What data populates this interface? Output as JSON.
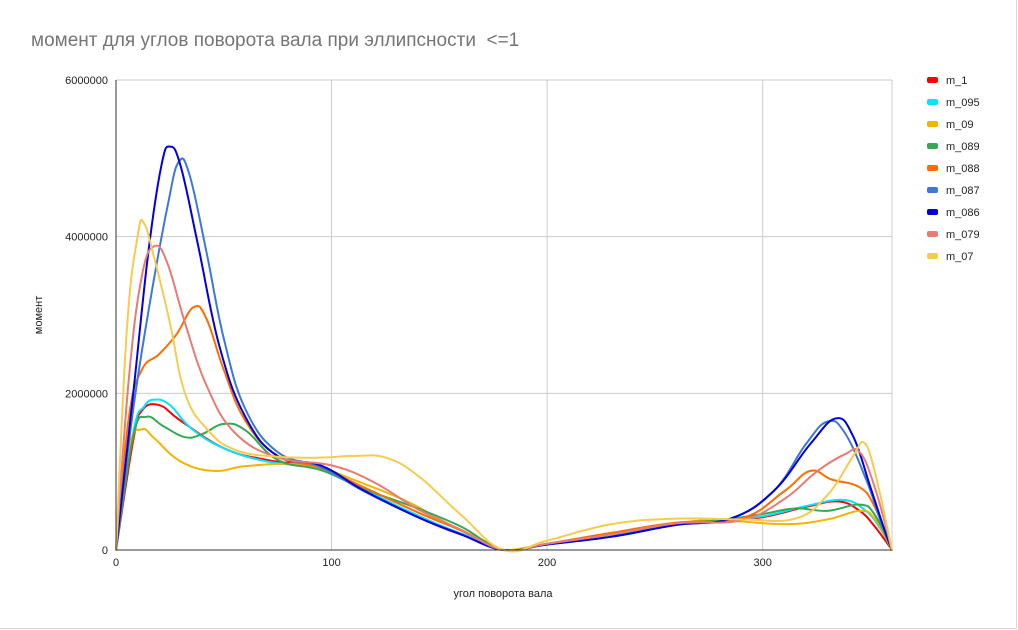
{
  "chart_data": {
    "type": "line",
    "title": "момент для углов поворота вала при эллипсности  <=1",
    "xlabel": "угол поворота вала",
    "ylabel": "момент",
    "xlim": [
      0,
      360
    ],
    "ylim": [
      0,
      6000000
    ],
    "x_ticks": [
      "0",
      "100",
      "200",
      "300"
    ],
    "y_ticks": [
      "0",
      "2000000",
      "4000000",
      "6000000"
    ],
    "grid": true,
    "legend_position": "right",
    "series": [
      {
        "name": "m_1",
        "color": "#ff0000",
        "points": [
          [
            0,
            0
          ],
          [
            8,
            1400000
          ],
          [
            12,
            1780000
          ],
          [
            20,
            1850000
          ],
          [
            30,
            1650000
          ],
          [
            50,
            1300000
          ],
          [
            70,
            1150000
          ],
          [
            95,
            1050000
          ],
          [
            110,
            850000
          ],
          [
            130,
            550000
          ],
          [
            150,
            300000
          ],
          [
            165,
            150000
          ],
          [
            180,
            0
          ],
          [
            200,
            70000
          ],
          [
            230,
            180000
          ],
          [
            260,
            330000
          ],
          [
            280,
            370000
          ],
          [
            300,
            420000
          ],
          [
            320,
            550000
          ],
          [
            335,
            620000
          ],
          [
            345,
            500000
          ],
          [
            352,
            300000
          ],
          [
            360,
            0
          ]
        ]
      },
      {
        "name": "m_095",
        "color": "#00e5ff",
        "points": [
          [
            0,
            0
          ],
          [
            8,
            1500000
          ],
          [
            13,
            1830000
          ],
          [
            18,
            1920000
          ],
          [
            25,
            1850000
          ],
          [
            35,
            1550000
          ],
          [
            50,
            1300000
          ],
          [
            70,
            1130000
          ],
          [
            95,
            1040000
          ],
          [
            110,
            850000
          ],
          [
            130,
            570000
          ],
          [
            150,
            320000
          ],
          [
            165,
            160000
          ],
          [
            180,
            0
          ],
          [
            200,
            70000
          ],
          [
            230,
            180000
          ],
          [
            260,
            330000
          ],
          [
            280,
            370000
          ],
          [
            300,
            430000
          ],
          [
            320,
            560000
          ],
          [
            337,
            640000
          ],
          [
            347,
            520000
          ],
          [
            354,
            300000
          ],
          [
            360,
            0
          ]
        ]
      },
      {
        "name": "m_09",
        "color": "#f4b400",
        "points": [
          [
            0,
            0
          ],
          [
            6,
            1300000
          ],
          [
            12,
            1540000
          ],
          [
            18,
            1420000
          ],
          [
            30,
            1130000
          ],
          [
            45,
            1010000
          ],
          [
            60,
            1070000
          ],
          [
            80,
            1100000
          ],
          [
            95,
            1050000
          ],
          [
            110,
            900000
          ],
          [
            135,
            620000
          ],
          [
            155,
            320000
          ],
          [
            170,
            130000
          ],
          [
            180,
            0
          ],
          [
            200,
            80000
          ],
          [
            230,
            200000
          ],
          [
            260,
            340000
          ],
          [
            280,
            380000
          ],
          [
            310,
            330000
          ],
          [
            330,
            390000
          ],
          [
            345,
            500000
          ],
          [
            352,
            400000
          ],
          [
            360,
            0
          ]
        ]
      },
      {
        "name": "m_089",
        "color": "#34a853",
        "points": [
          [
            0,
            0
          ],
          [
            8,
            1450000
          ],
          [
            14,
            1700000
          ],
          [
            22,
            1580000
          ],
          [
            32,
            1440000
          ],
          [
            40,
            1480000
          ],
          [
            50,
            1610000
          ],
          [
            60,
            1530000
          ],
          [
            75,
            1150000
          ],
          [
            95,
            1020000
          ],
          [
            115,
            780000
          ],
          [
            140,
            530000
          ],
          [
            160,
            300000
          ],
          [
            180,
            0
          ],
          [
            200,
            80000
          ],
          [
            230,
            200000
          ],
          [
            260,
            340000
          ],
          [
            280,
            380000
          ],
          [
            300,
            460000
          ],
          [
            315,
            530000
          ],
          [
            330,
            500000
          ],
          [
            345,
            580000
          ],
          [
            352,
            450000
          ],
          [
            360,
            0
          ]
        ]
      },
      {
        "name": "m_088",
        "color": "#ff6d00",
        "points": [
          [
            0,
            0
          ],
          [
            6,
            1700000
          ],
          [
            12,
            2300000
          ],
          [
            20,
            2500000
          ],
          [
            28,
            2750000
          ],
          [
            36,
            3100000
          ],
          [
            42,
            2950000
          ],
          [
            50,
            2300000
          ],
          [
            60,
            1650000
          ],
          [
            75,
            1200000
          ],
          [
            95,
            1050000
          ],
          [
            115,
            800000
          ],
          [
            140,
            480000
          ],
          [
            160,
            250000
          ],
          [
            180,
            0
          ],
          [
            200,
            80000
          ],
          [
            230,
            220000
          ],
          [
            260,
            350000
          ],
          [
            290,
            400000
          ],
          [
            310,
            750000
          ],
          [
            322,
            1010000
          ],
          [
            332,
            900000
          ],
          [
            345,
            800000
          ],
          [
            352,
            550000
          ],
          [
            360,
            0
          ]
        ]
      },
      {
        "name": "m_087",
        "color": "#3c78d8",
        "points": [
          [
            0,
            0
          ],
          [
            8,
            1800000
          ],
          [
            16,
            3200000
          ],
          [
            24,
            4400000
          ],
          [
            29,
            4950000
          ],
          [
            34,
            4800000
          ],
          [
            42,
            3800000
          ],
          [
            50,
            2700000
          ],
          [
            60,
            1800000
          ],
          [
            75,
            1250000
          ],
          [
            95,
            1060000
          ],
          [
            115,
            750000
          ],
          [
            140,
            420000
          ],
          [
            160,
            200000
          ],
          [
            180,
            0
          ],
          [
            200,
            70000
          ],
          [
            230,
            170000
          ],
          [
            260,
            320000
          ],
          [
            285,
            400000
          ],
          [
            305,
            750000
          ],
          [
            320,
            1350000
          ],
          [
            330,
            1640000
          ],
          [
            338,
            1500000
          ],
          [
            348,
            900000
          ],
          [
            355,
            350000
          ],
          [
            360,
            0
          ]
        ]
      },
      {
        "name": "m_086",
        "color": "#0000e0",
        "points": [
          [
            0,
            0
          ],
          [
            8,
            2000000
          ],
          [
            15,
            3800000
          ],
          [
            21,
            4900000
          ],
          [
            25,
            5150000
          ],
          [
            30,
            4900000
          ],
          [
            38,
            3900000
          ],
          [
            48,
            2600000
          ],
          [
            60,
            1700000
          ],
          [
            75,
            1200000
          ],
          [
            95,
            1080000
          ],
          [
            115,
            760000
          ],
          [
            140,
            420000
          ],
          [
            160,
            200000
          ],
          [
            180,
            0
          ],
          [
            200,
            70000
          ],
          [
            230,
            170000
          ],
          [
            260,
            320000
          ],
          [
            285,
            400000
          ],
          [
            305,
            750000
          ],
          [
            322,
            1350000
          ],
          [
            334,
            1680000
          ],
          [
            342,
            1450000
          ],
          [
            350,
            800000
          ],
          [
            356,
            300000
          ],
          [
            360,
            0
          ]
        ]
      },
      {
        "name": "m_079",
        "color": "#e67c73",
        "points": [
          [
            0,
            0
          ],
          [
            6,
            2200000
          ],
          [
            12,
            3500000
          ],
          [
            18,
            3880000
          ],
          [
            24,
            3650000
          ],
          [
            32,
            2900000
          ],
          [
            42,
            2100000
          ],
          [
            55,
            1500000
          ],
          [
            75,
            1180000
          ],
          [
            100,
            1080000
          ],
          [
            120,
            860000
          ],
          [
            140,
            520000
          ],
          [
            160,
            260000
          ],
          [
            180,
            0
          ],
          [
            200,
            80000
          ],
          [
            230,
            200000
          ],
          [
            260,
            340000
          ],
          [
            290,
            380000
          ],
          [
            310,
            650000
          ],
          [
            325,
            1000000
          ],
          [
            338,
            1220000
          ],
          [
            345,
            1250000
          ],
          [
            352,
            800000
          ],
          [
            360,
            0
          ]
        ]
      },
      {
        "name": "m_07",
        "color": "#f7cb4d",
        "points": [
          [
            0,
            0
          ],
          [
            5,
            2800000
          ],
          [
            10,
            4000000
          ],
          [
            13,
            4170000
          ],
          [
            18,
            3700000
          ],
          [
            25,
            2900000
          ],
          [
            32,
            2000000
          ],
          [
            42,
            1550000
          ],
          [
            55,
            1280000
          ],
          [
            75,
            1190000
          ],
          [
            95,
            1180000
          ],
          [
            110,
            1200000
          ],
          [
            125,
            1180000
          ],
          [
            140,
            950000
          ],
          [
            160,
            450000
          ],
          [
            180,
            0
          ],
          [
            200,
            120000
          ],
          [
            230,
            330000
          ],
          [
            260,
            400000
          ],
          [
            290,
            390000
          ],
          [
            315,
            400000
          ],
          [
            330,
            700000
          ],
          [
            342,
            1200000
          ],
          [
            347,
            1370000
          ],
          [
            352,
            1000000
          ],
          [
            360,
            0
          ]
        ]
      }
    ]
  }
}
